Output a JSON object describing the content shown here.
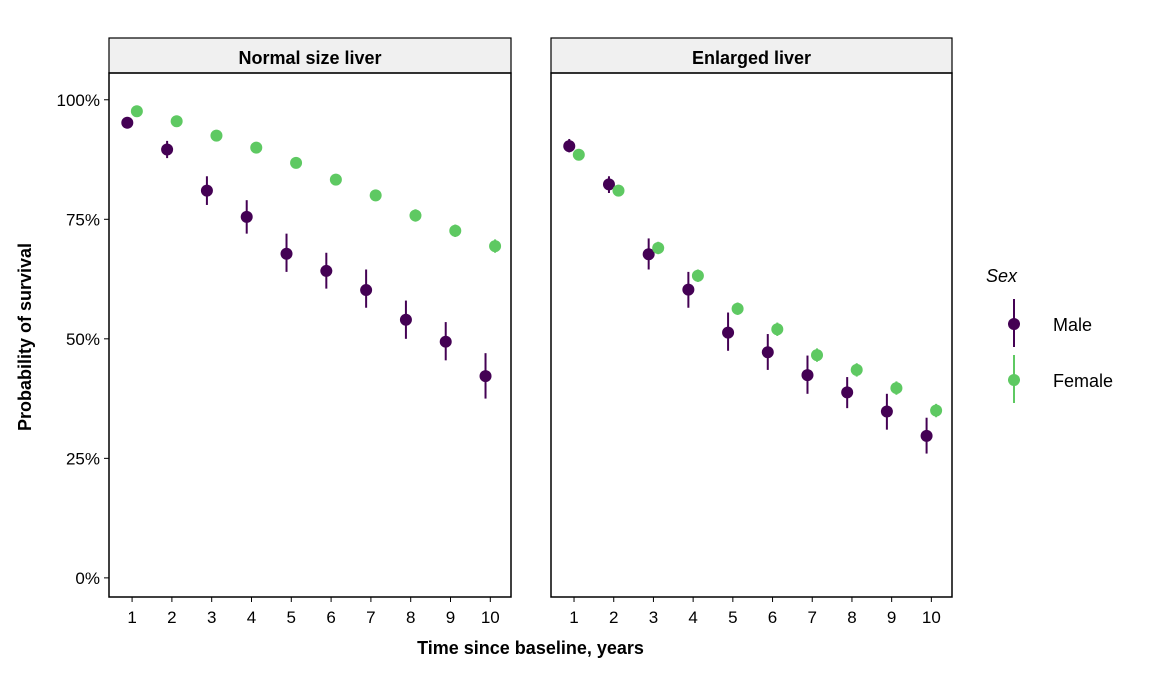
{
  "chart_data": [
    {
      "type": "pointrange",
      "title": "Normal size liver",
      "xlabel": "Time since baseline, years",
      "ylabel": "Probability of survival",
      "legend_title": "Sex",
      "x": [
        1,
        2,
        3,
        4,
        5,
        6,
        7,
        8,
        9,
        10
      ],
      "xlim": [
        0.42,
        10.52
      ],
      "xticks": [
        1,
        2,
        3,
        4,
        5,
        6,
        7,
        8,
        9,
        10
      ],
      "ylim": [
        -4,
        105.6
      ],
      "yticks": [
        {
          "value": 0,
          "label": "0%"
        },
        {
          "value": 25,
          "label": "25%"
        },
        {
          "value": 50,
          "label": "50%"
        },
        {
          "value": 75,
          "label": "75%"
        },
        {
          "value": 100,
          "label": "100%"
        }
      ],
      "series": [
        {
          "name": "Male",
          "color": "#440154",
          "values": [
            95.2,
            89.6,
            81.0,
            75.5,
            67.8,
            64.2,
            60.2,
            54.0,
            49.4,
            42.2
          ],
          "lower": [
            94.3,
            87.8,
            78.0,
            72.0,
            64.0,
            60.5,
            56.5,
            50.0,
            45.5,
            37.5
          ],
          "upper": [
            96.1,
            91.4,
            84.0,
            79.0,
            72.0,
            68.0,
            64.5,
            58.0,
            53.5,
            47.0
          ]
        },
        {
          "name": "Female",
          "color": "#5ec962",
          "values": [
            97.6,
            95.5,
            92.5,
            90.0,
            86.8,
            83.3,
            80.0,
            75.8,
            72.6,
            69.4
          ],
          "lower": [
            97.0,
            94.8,
            91.6,
            89.0,
            85.7,
            82.2,
            78.8,
            74.5,
            71.3,
            68.0
          ],
          "upper": [
            98.2,
            96.2,
            93.4,
            91.0,
            87.9,
            84.4,
            81.2,
            77.1,
            73.9,
            70.8
          ]
        }
      ]
    },
    {
      "type": "pointrange",
      "title": "Enlarged liver",
      "x": [
        1,
        2,
        3,
        4,
        5,
        6,
        7,
        8,
        9,
        10
      ],
      "xlim": [
        0.42,
        10.52
      ],
      "xticks": [
        1,
        2,
        3,
        4,
        5,
        6,
        7,
        8,
        9,
        10
      ],
      "ylim": [
        -4,
        105.6
      ],
      "series": [
        {
          "color": "#440154",
          "values": [
            90.3,
            82.3,
            67.7,
            60.3,
            51.3,
            47.2,
            42.4,
            38.8,
            34.8,
            29.7
          ],
          "lower": [
            89.0,
            80.5,
            64.5,
            56.5,
            47.5,
            43.5,
            38.5,
            35.5,
            31.0,
            26.0
          ],
          "upper": [
            91.8,
            84.0,
            71.0,
            64.0,
            55.5,
            51.0,
            46.5,
            42.0,
            38.5,
            33.5
          ]
        },
        {
          "color": "#5ec962",
          "values": [
            88.5,
            81.0,
            69.0,
            63.2,
            56.3,
            52.0,
            46.6,
            43.5,
            39.7,
            35.0
          ],
          "lower": [
            87.5,
            79.8,
            67.7,
            61.9,
            55.0,
            50.6,
            45.2,
            42.1,
            38.3,
            33.6
          ],
          "upper": [
            89.5,
            82.2,
            70.3,
            64.5,
            57.6,
            53.4,
            48.0,
            44.9,
            41.1,
            36.4
          ]
        }
      ]
    }
  ]
}
